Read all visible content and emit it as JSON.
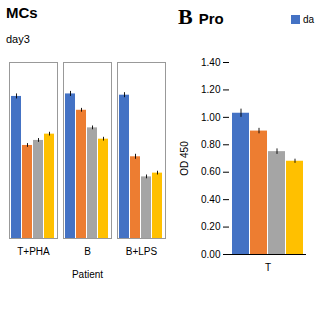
{
  "chart_data": [
    {
      "type": "bar",
      "title": "MCs",
      "subtitle": "day3",
      "categories": [
        "T+PHA",
        "B",
        "B+LPS"
      ],
      "series": [
        {
          "color": "#4472C4",
          "values": [
            1.13,
            1.15,
            1.14
          ],
          "errors": [
            0.02,
            0.02,
            0.02
          ]
        },
        {
          "color": "#ED7D31",
          "values": [
            0.74,
            1.02,
            0.65
          ],
          "errors": [
            0.015,
            0.015,
            0.02
          ]
        },
        {
          "color": "#A5A5A5",
          "values": [
            0.78,
            0.88,
            0.49
          ],
          "errors": [
            0.015,
            0.015,
            0.015
          ]
        },
        {
          "color": "#FFC000",
          "values": [
            0.83,
            0.79,
            0.52
          ],
          "errors": [
            0.015,
            0.015,
            0.015
          ]
        }
      ],
      "xlabel": "Patient",
      "ylim": [
        0.0,
        1.4
      ],
      "yticks": [],
      "tick_labels": "x"
    },
    {
      "type": "bar",
      "title": "Pro",
      "annotations": [
        "B"
      ],
      "categories": [
        "T"
      ],
      "series": [
        {
          "name": "da",
          "color": "#4472C4",
          "values": [
            1.03
          ],
          "errors": [
            0.03
          ]
        },
        {
          "color": "#ED7D31",
          "values": [
            0.9
          ],
          "errors": [
            0.02
          ]
        },
        {
          "color": "#A5A5A5",
          "values": [
            0.75
          ],
          "errors": [
            0.02
          ]
        },
        {
          "color": "#FFC000",
          "values": [
            0.68
          ],
          "errors": [
            0.015
          ]
        }
      ],
      "ylabel": "OD 450",
      "ylim": [
        0.0,
        1.4
      ],
      "yticks": [
        {
          "value": 0.0,
          "label": "0.00"
        },
        {
          "value": 0.2,
          "label": "0.20"
        },
        {
          "value": 0.4,
          "label": "0.40"
        },
        {
          "value": 0.6,
          "label": "0.60"
        },
        {
          "value": 0.8,
          "label": "0.80"
        },
        {
          "value": 1.0,
          "label": "1.00"
        },
        {
          "value": 1.2,
          "label": "1.20"
        },
        {
          "value": 1.4,
          "label": "1.40"
        }
      ],
      "legend": "upper right"
    }
  ]
}
